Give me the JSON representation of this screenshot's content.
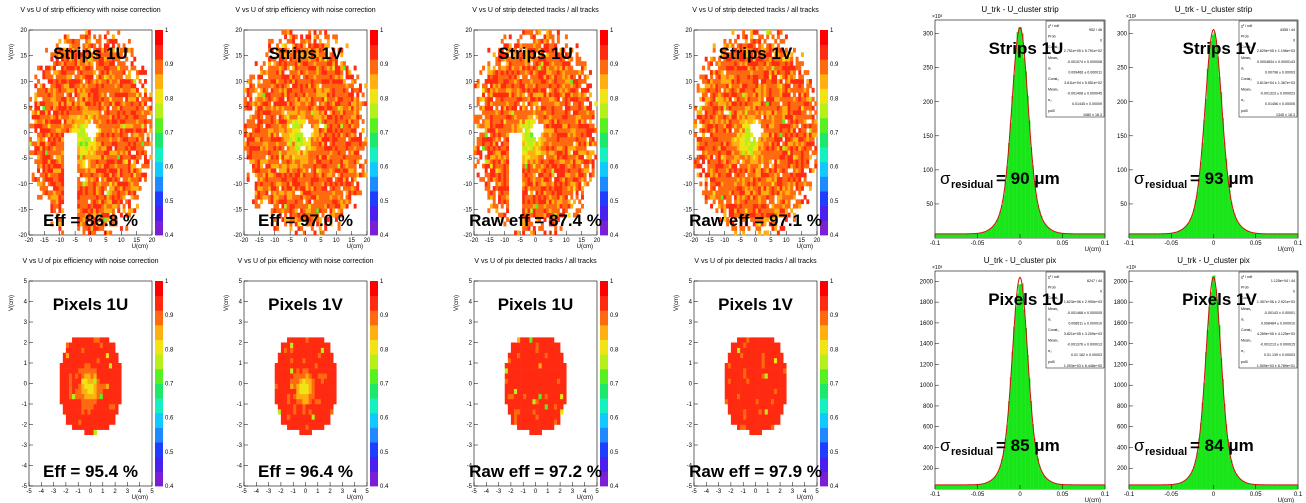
{
  "palette": {
    "cbar": [
      "#7a1fd6",
      "#4a1ff0",
      "#1f3cff",
      "#1f8aff",
      "#12c9ff",
      "#14f0c0",
      "#1ee86a",
      "#58f020",
      "#b6f01a",
      "#f0e414",
      "#ffb010",
      "#ff6a10",
      "#ff2a10",
      "#ff0000"
    ],
    "hist_fill": "#19e619",
    "fit_line": "#d01010"
  },
  "chart_data": [
    {
      "id": "eff-strip-1u",
      "type": "heatmap",
      "title": "V vs U of strip efficiency with noise correction",
      "label": "Strips 1U",
      "result": "Eff = 86.8 %",
      "xlabel": "U(cm)",
      "ylabel": "V(cm)",
      "xlim": [
        -20,
        20
      ],
      "ylim": [
        -20,
        20
      ],
      "xticks": [
        "-20",
        "-15",
        "-10",
        "-5",
        "0",
        "5",
        "10",
        "15",
        "20"
      ],
      "yticks": [
        "-20",
        "-15",
        "-10",
        "-5",
        "0",
        "5",
        "10",
        "15",
        "20"
      ],
      "zlim": [
        0.4,
        1
      ],
      "zticks": [
        "0.4",
        "0.5",
        "0.6",
        "0.7",
        "0.8",
        "0.9",
        "1"
      ]
    },
    {
      "id": "eff-strip-1v",
      "type": "heatmap",
      "title": "V vs U of strip efficiency with noise correction",
      "label": "Strips 1V",
      "result": "Eff = 97.0 %",
      "xlabel": "U(cm)",
      "ylabel": "V(cm)",
      "xlim": [
        -20,
        20
      ],
      "ylim": [
        -20,
        20
      ],
      "xticks": [
        "-20",
        "-15",
        "-10",
        "-5",
        "0",
        "5",
        "10",
        "15",
        "20"
      ],
      "yticks": [
        "-20",
        "-15",
        "-10",
        "-5",
        "0",
        "5",
        "10",
        "15",
        "20"
      ],
      "zlim": [
        0.4,
        1
      ],
      "zticks": [
        "0.4",
        "0.5",
        "0.6",
        "0.7",
        "0.8",
        "0.9",
        "1"
      ]
    },
    {
      "id": "raw-strip-1u",
      "type": "heatmap",
      "title": "V vs U of strip detected tracks / all tracks",
      "label": "Strips 1U",
      "result": "Raw eff = 87.4 %",
      "xlabel": "U(cm)",
      "ylabel": "V(cm)",
      "xlim": [
        -20,
        20
      ],
      "ylim": [
        -20,
        20
      ],
      "xticks": [
        "-20",
        "-15",
        "-10",
        "-5",
        "0",
        "5",
        "10",
        "15",
        "20"
      ],
      "yticks": [
        "-20",
        "-15",
        "-10",
        "-5",
        "0",
        "5",
        "10",
        "15",
        "20"
      ],
      "zlim": [
        0.4,
        1
      ],
      "zticks": [
        "0.4",
        "0.5",
        "0.6",
        "0.7",
        "0.8",
        "0.9",
        "1"
      ]
    },
    {
      "id": "raw-strip-1v",
      "type": "heatmap",
      "title": "V vs U of strip detected tracks / all tracks",
      "label": "Strips 1V",
      "result": "Raw eff = 97.1 %",
      "xlabel": "U(cm)",
      "ylabel": "V(cm)",
      "xlim": [
        -20,
        20
      ],
      "ylim": [
        -20,
        20
      ],
      "xticks": [
        "-20",
        "-15",
        "-10",
        "-5",
        "0",
        "5",
        "10",
        "15",
        "20"
      ],
      "yticks": [
        "-20",
        "-15",
        "-10",
        "-5",
        "0",
        "5",
        "10",
        "15",
        "20"
      ],
      "zlim": [
        0.4,
        1
      ],
      "zticks": [
        "0.4",
        "0.5",
        "0.6",
        "0.7",
        "0.8",
        "0.9",
        "1"
      ]
    },
    {
      "id": "res-strip-1u",
      "type": "bar",
      "title": "U_trk - U_cluster strip",
      "label": "Strips 1U",
      "result_symbol": "σ",
      "result_sub": "residual",
      "result_value": "= 90 μm",
      "xlabel": "U(cm)",
      "multiplier": "×10³",
      "xlim": [
        -0.1,
        0.1
      ],
      "ylim": [
        0,
        320
      ],
      "xticks": [
        "-0.1",
        "-0.05",
        "0",
        "0.05",
        "0.1"
      ],
      "yticks": [
        "50",
        "100",
        "150",
        "200",
        "250",
        "300"
      ],
      "peak": 303,
      "sigma": 0.009,
      "stats": [
        [
          "χ² / ndf",
          "952 / 46"
        ],
        [
          "Prob",
          "0"
        ],
        [
          "Const₁",
          "2.751e+05 ± 5.751e+02"
        ],
        [
          "Mean₁",
          "-0.001074 ± 0.000008"
        ],
        [
          "σ₁",
          "0.009466 ± 0.000011"
        ],
        [
          "Const₂",
          "3.611e+04 ± 5.551e+02"
        ],
        [
          "Mean₂",
          "-0.001408 ± 0.000045"
        ],
        [
          "σ₂",
          "0.01445 ± 0.00009"
        ],
        [
          "pol0",
          "1080 ± 16.3"
        ]
      ]
    },
    {
      "id": "res-strip-1v",
      "type": "bar",
      "title": "U_trk - U_cluster strip",
      "label": "Strips 1V",
      "result_symbol": "σ",
      "result_sub": "residual",
      "result_value": "= 93 μm",
      "xlabel": "U(cm)",
      "multiplier": "×10³",
      "xlim": [
        -0.1,
        0.1
      ],
      "ylim": [
        0,
        320
      ],
      "xticks": [
        "-0.1",
        "-0.05",
        "0",
        "0.05",
        "0.1"
      ],
      "yticks": [
        "50",
        "100",
        "150",
        "200",
        "250",
        "300"
      ],
      "peak": 300,
      "sigma": 0.0093,
      "stats": [
        [
          "χ² / ndf",
          "4355 / 44"
        ],
        [
          "Prob",
          "0"
        ],
        [
          "Const₁",
          "2.629e+05 ± 1.196e+03"
        ],
        [
          "Mean₁",
          "0.0004834 ± 0.0000143"
        ],
        [
          "σ₁",
          "0.00798 ± 0.00003"
        ],
        [
          "Const₂",
          "3.613e+04 ± 1.367e+03"
        ],
        [
          "Mean₂",
          "-0.001323 ± 0.000023"
        ],
        [
          "σ₂",
          "0.01456 ± 0.00005"
        ],
        [
          "pol0",
          "1345 ± 18.3"
        ]
      ]
    },
    {
      "id": "eff-pix-1u",
      "type": "heatmap",
      "title": "V vs U of pix efficiency with noise correction",
      "label": "Pixels 1U",
      "result": "Eff = 95.4 %",
      "xlabel": "U(cm)",
      "ylabel": "V(cm)",
      "xlim": [
        -5,
        5
      ],
      "ylim": [
        -5,
        5
      ],
      "xticks": [
        "-5",
        "-4",
        "-3",
        "-2",
        "-1",
        "0",
        "1",
        "2",
        "3",
        "4",
        "5"
      ],
      "yticks": [
        "-5",
        "-4",
        "-3",
        "-2",
        "-1",
        "0",
        "1",
        "2",
        "3",
        "4",
        "5"
      ],
      "zlim": [
        0.4,
        1
      ],
      "zticks": [
        "0.4",
        "0.5",
        "0.6",
        "0.7",
        "0.8",
        "0.9",
        "1"
      ]
    },
    {
      "id": "eff-pix-1v",
      "type": "heatmap",
      "title": "V vs U of pix efficiency with noise correction",
      "label": "Pixels 1V",
      "result": "Eff = 96.4 %",
      "xlabel": "U(cm)",
      "ylabel": "V(cm)",
      "xlim": [
        -5,
        5
      ],
      "ylim": [
        -5,
        5
      ],
      "xticks": [
        "-5",
        "-4",
        "-3",
        "-2",
        "-1",
        "0",
        "1",
        "2",
        "3",
        "4",
        "5"
      ],
      "yticks": [
        "-5",
        "-4",
        "-3",
        "-2",
        "-1",
        "0",
        "1",
        "2",
        "3",
        "4",
        "5"
      ],
      "zlim": [
        0.4,
        1
      ],
      "zticks": [
        "0.4",
        "0.5",
        "0.6",
        "0.7",
        "0.8",
        "0.9",
        "1"
      ]
    },
    {
      "id": "raw-pix-1u",
      "type": "heatmap",
      "title": "V vs U of pix detected tracks / all tracks",
      "label": "Pixels 1U",
      "result": "Raw eff = 97.2 %",
      "xlabel": "U(cm)",
      "ylabel": "V(cm)",
      "xlim": [
        -5,
        5
      ],
      "ylim": [
        -5,
        5
      ],
      "xticks": [
        "-5",
        "-4",
        "-3",
        "-2",
        "-1",
        "0",
        "1",
        "2",
        "3",
        "4",
        "5"
      ],
      "yticks": [
        "-5",
        "-4",
        "-3",
        "-2",
        "-1",
        "0",
        "1",
        "2",
        "3",
        "4",
        "5"
      ],
      "zlim": [
        0.4,
        1
      ],
      "zticks": [
        "0.4",
        "0.5",
        "0.6",
        "0.7",
        "0.8",
        "0.9",
        "1"
      ]
    },
    {
      "id": "raw-pix-1v",
      "type": "heatmap",
      "title": "V vs U of pix detected tracks / all tracks",
      "label": "Pixels 1V",
      "result": "Raw eff = 97.9 %",
      "xlabel": "U(cm)",
      "ylabel": "V(cm)",
      "xlim": [
        -5,
        5
      ],
      "ylim": [
        -5,
        5
      ],
      "xticks": [
        "-5",
        "-4",
        "-3",
        "-2",
        "-1",
        "0",
        "1",
        "2",
        "3",
        "4",
        "5"
      ],
      "yticks": [
        "-5",
        "-4",
        "-3",
        "-2",
        "-1",
        "0",
        "1",
        "2",
        "3",
        "4",
        "5"
      ],
      "zlim": [
        0.4,
        1
      ],
      "zticks": [
        "0.4",
        "0.5",
        "0.6",
        "0.7",
        "0.8",
        "0.9",
        "1"
      ]
    },
    {
      "id": "res-pix-1u",
      "type": "bar",
      "title": "U_trk - U_cluster pix",
      "label": "Pixels 1U",
      "result_symbol": "σ",
      "result_sub": "residual",
      "result_value": "= 85 μm",
      "xlabel": "U(cm)",
      "multiplier": "×10³",
      "xlim": [
        -0.1,
        0.1
      ],
      "ylim": [
        0,
        2100
      ],
      "xticks": [
        "-0.1",
        "-0.05",
        "0",
        "0.05",
        "0.1"
      ],
      "yticks": [
        "200",
        "400",
        "600",
        "800",
        "1000",
        "1200",
        "1400",
        "1600",
        "1800",
        "2000"
      ],
      "peak": 2000,
      "sigma": 0.0085,
      "stats": [
        [
          "χ² / ndf",
          "6247 / 44"
        ],
        [
          "Prob",
          "0"
        ],
        [
          "Const₁",
          "1.623e+06 ± 2.990e+03"
        ],
        [
          "Mean₁",
          "-0.001468 ± 0.000005"
        ],
        [
          "σ₁",
          "0.008511 ± 0.000010"
        ],
        [
          "Const₂",
          "3.821e+05 ± 3.209e+03"
        ],
        [
          "Mean₂",
          "-0.001376 ± 0.000013"
        ],
        [
          "σ₂",
          "0.01 162 ± 0.00003"
        ],
        [
          "pol0",
          "1.093e+03 ± 6.448e+00"
        ]
      ]
    },
    {
      "id": "res-pix-1v",
      "type": "bar",
      "title": "U_trk - U_cluster pix",
      "label": "Pixels 1V",
      "result_symbol": "σ",
      "result_sub": "residual",
      "result_value": "= 84 μm",
      "xlabel": "U(cm)",
      "multiplier": "×10³",
      "xlim": [
        -0.1,
        0.1
      ],
      "ylim": [
        0,
        2100
      ],
      "xticks": [
        "-0.1",
        "-0.05",
        "0",
        "0.05",
        "0.1"
      ],
      "yticks": [
        "200",
        "400",
        "600",
        "800",
        "1000",
        "1200",
        "1400",
        "1600",
        "1800",
        "2000"
      ],
      "peak": 2000,
      "sigma": 0.0084,
      "stats": [
        [
          "χ² / ndf",
          "1.125e+04 / 44"
        ],
        [
          "Prob",
          "0"
        ],
        [
          "Const₁",
          "1.357e+06 ± 2.921e+03"
        ],
        [
          "Mean₁",
          "-0.00143 ± 0.00001"
        ],
        [
          "σ₁",
          "0.008484 ± 0.000010"
        ],
        [
          "Const₂",
          "4.269e+05 ± 4.125e+03"
        ],
        [
          "Mean₂",
          "-0.001213 ± 0.000015"
        ],
        [
          "σ₂",
          "0.01 139 ± 0.00003"
        ],
        [
          "pol0",
          "1.509e+03 ± 6.789e+01"
        ]
      ]
    }
  ]
}
